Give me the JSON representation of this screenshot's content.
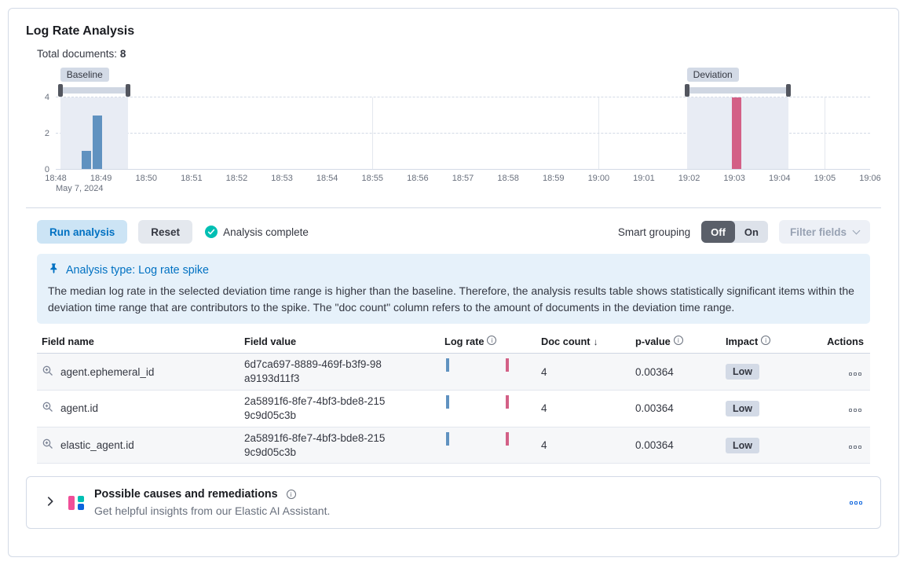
{
  "page": {
    "title": "Log Rate Analysis",
    "total_documents_label": "Total documents:",
    "total_documents_value": "8"
  },
  "chart_data": {
    "type": "bar",
    "title": "",
    "x_ticks": [
      "18:48",
      "18:49",
      "18:50",
      "18:51",
      "18:52",
      "18:53",
      "18:54",
      "18:55",
      "18:56",
      "18:57",
      "18:58",
      "18:59",
      "19:00",
      "19:01",
      "19:02",
      "19:03",
      "19:04",
      "19:05",
      "19:06"
    ],
    "x_date_label": "May 7, 2024",
    "y_ticks": [
      0,
      2,
      4
    ],
    "ylim": [
      0,
      4
    ],
    "bars": [
      {
        "x": 0.67,
        "value": 1,
        "series": "baseline"
      },
      {
        "x": 0.92,
        "value": 3,
        "series": "baseline"
      },
      {
        "x": 15.05,
        "value": 4,
        "series": "deviation"
      }
    ],
    "baseline": {
      "label": "Baseline",
      "range": [
        0.1,
        1.6
      ]
    },
    "deviation": {
      "label": "Deviation",
      "range": [
        13.95,
        16.2
      ]
    },
    "v_gridlines": [
      7,
      12,
      17
    ],
    "legend": "none",
    "grid": "dashed-horizontal"
  },
  "controls": {
    "run_analysis_label": "Run analysis",
    "reset_label": "Reset",
    "status_label": "Analysis complete",
    "smart_grouping_label": "Smart grouping",
    "toggle_off_label": "Off",
    "toggle_on_label": "On",
    "filter_fields_label": "Filter fields"
  },
  "callout": {
    "title": "Analysis type: Log rate spike",
    "body": "The median log rate in the selected deviation time range is higher than the baseline. Therefore, the analysis results table shows statistically significant items within the deviation time range that are contributors to the spike. The \"doc count\" column refers to the amount of documents in the deviation time range."
  },
  "table": {
    "headers": {
      "field_name": "Field name",
      "field_value": "Field value",
      "log_rate": "Log rate",
      "doc_count": "Doc count",
      "p_value": "p-value",
      "impact": "Impact",
      "actions": "Actions"
    },
    "rows": [
      {
        "field_name": "agent.ephemeral_id",
        "field_value": "6d7ca697-8889-469f-b3f9-98a9193d11f3",
        "doc_count": "4",
        "p_value": "0.00364",
        "impact": "Low"
      },
      {
        "field_name": "agent.id",
        "field_value": "2a5891f6-8fe7-4bf3-bde8-2159c9d05c3b",
        "doc_count": "4",
        "p_value": "0.00364",
        "impact": "Low"
      },
      {
        "field_name": "elastic_agent.id",
        "field_value": "2a5891f6-8fe7-4bf3-bde8-2159c9d05c3b",
        "doc_count": "4",
        "p_value": "0.00364",
        "impact": "Low"
      }
    ]
  },
  "ai_panel": {
    "title": "Possible causes and remediations",
    "subtitle": "Get helpful insights from our Elastic AI Assistant."
  },
  "icons": {
    "info": "i",
    "sort_desc": "↓"
  },
  "colors": {
    "primary": "#0071c2",
    "success_check": "#00bfb3",
    "baseline_bar": "#6092c0",
    "deviation_bar": "#d36086",
    "badge_bg": "#d3dae6",
    "callout_bg": "#e6f1fa"
  }
}
